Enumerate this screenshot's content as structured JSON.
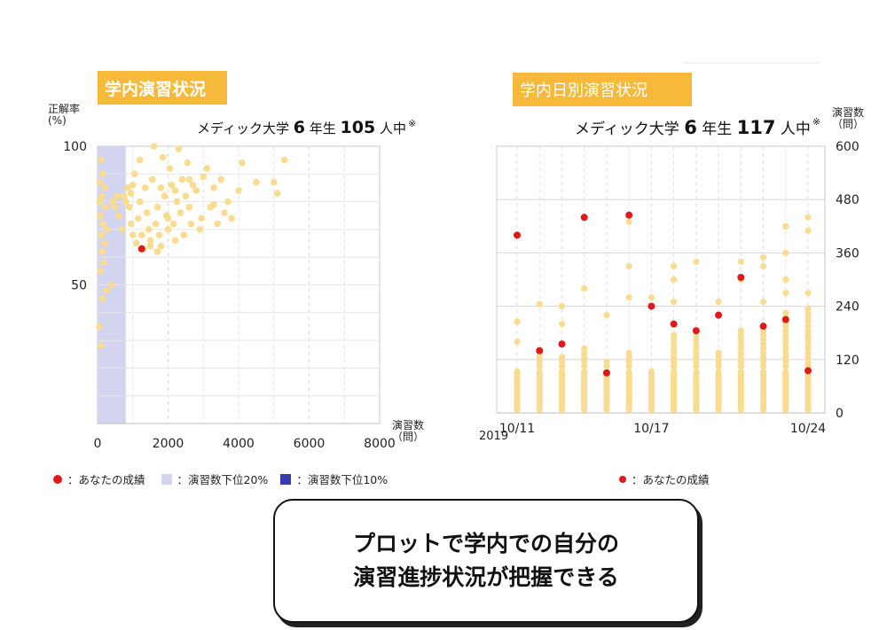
{
  "left_panel": {
    "tag": "学内演習状況",
    "header_prefix": "メディック大学",
    "header_year": "6",
    "header_year_unit": "年生",
    "header_count": "105",
    "header_count_unit": "人中",
    "header_mark": "※",
    "y_axis_title_line1": "正解率",
    "y_axis_title_line2": "(%)",
    "x_axis_title_line1": "演習数",
    "x_axis_title_line2": "（問）"
  },
  "right_panel": {
    "tag": "学内日別演習状況",
    "header_prefix": "メディック大学",
    "header_year": "6",
    "header_year_unit": "年生",
    "header_count": "117",
    "header_count_unit": "人中",
    "header_mark": "※",
    "y_axis_title_line1": "演習数",
    "y_axis_title_line2": "（問）",
    "year_label": "2019"
  },
  "legend": {
    "left": {
      "you": "：あなたの成績",
      "bottom20": "：演習数下位20%",
      "bottom10": "：演習数下位10%"
    },
    "right": {
      "you": "：あなたの成績"
    }
  },
  "callout": {
    "line1": "プロットで学内での自分の",
    "line2": "演習進捗状況が把握できる"
  },
  "colors": {
    "tag": "#f6b93a",
    "others": "#f9dc8f",
    "you": "#e01a1a",
    "band20": "#d3d4f0",
    "band10": "#3a3ab0"
  },
  "chart_data": [
    {
      "type": "scatter",
      "xlim": [
        0,
        8000
      ],
      "ylim": [
        0,
        100
      ],
      "xticks": [
        "0",
        "2000",
        "4000",
        "6000",
        "8000"
      ],
      "yticks": [
        "50",
        "100"
      ],
      "grid": true,
      "shaded_band": {
        "label": "演習数下位20%",
        "x_range": [
          0,
          800
        ]
      },
      "series": [
        {
          "name": "others",
          "points": [
            [
              100,
              95
            ],
            [
              150,
              90
            ],
            [
              60,
              87
            ],
            [
              200,
              85
            ],
            [
              120,
              82
            ],
            [
              60,
              80
            ],
            [
              220,
              78
            ],
            [
              80,
              75
            ],
            [
              150,
              72
            ],
            [
              260,
              70
            ],
            [
              100,
              68
            ],
            [
              200,
              65
            ],
            [
              140,
              62
            ],
            [
              180,
              58
            ],
            [
              80,
              55
            ],
            [
              250,
              48
            ],
            [
              150,
              45
            ],
            [
              50,
              35
            ],
            [
              100,
              28
            ],
            [
              400,
              50
            ],
            [
              430,
              80
            ],
            [
              500,
              78
            ],
            [
              550,
              82
            ],
            [
              600,
              75
            ],
            [
              700,
              70
            ],
            [
              750,
              82
            ],
            [
              800,
              80
            ],
            [
              850,
              85
            ],
            [
              900,
              78
            ],
            [
              950,
              72
            ],
            [
              1000,
              68
            ],
            [
              1100,
              65
            ],
            [
              1150,
              74
            ],
            [
              1200,
              80
            ],
            [
              1250,
              68
            ],
            [
              1300,
              63
            ],
            [
              1350,
              85
            ],
            [
              1400,
              76
            ],
            [
              1450,
              70
            ],
            [
              1500,
              66
            ],
            [
              1550,
              88
            ],
            [
              1600,
              100
            ],
            [
              1650,
              72
            ],
            [
              1700,
              78
            ],
            [
              1750,
              68
            ],
            [
              1800,
              64
            ],
            [
              1850,
              96
            ],
            [
              1900,
              82
            ],
            [
              1950,
              75
            ],
            [
              2000,
              70
            ],
            [
              2050,
              92
            ],
            [
              2100,
              86
            ],
            [
              2150,
              72
            ],
            [
              2200,
              66
            ],
            [
              2250,
              80
            ],
            [
              2300,
              99
            ],
            [
              2350,
              76
            ],
            [
              2400,
              88
            ],
            [
              2450,
              68
            ],
            [
              2500,
              82
            ],
            [
              2550,
              94
            ],
            [
              2600,
              78
            ],
            [
              2650,
              72
            ],
            [
              2700,
              86
            ],
            [
              2800,
              84
            ],
            [
              2900,
              70
            ],
            [
              3000,
              89
            ],
            [
              3100,
              92
            ],
            [
              3200,
              78
            ],
            [
              3300,
              85
            ],
            [
              3400,
              72
            ],
            [
              3500,
              88
            ],
            [
              3600,
              76
            ],
            [
              3700,
              80
            ],
            [
              3800,
              74
            ],
            [
              4000,
              84
            ],
            [
              4100,
              94
            ],
            [
              4500,
              87
            ],
            [
              5000,
              87
            ],
            [
              5100,
              83
            ],
            [
              5300,
              95
            ],
            [
              1200,
              95
            ],
            [
              1050,
              90
            ],
            [
              950,
              83
            ],
            [
              1500,
              64
            ],
            [
              1700,
              62
            ],
            [
              2000,
              74
            ],
            [
              2200,
              84
            ],
            [
              1800,
              85
            ],
            [
              2600,
              88
            ],
            [
              1000,
              86
            ],
            [
              3300,
              79
            ],
            [
              2950,
              74
            ]
          ]
        },
        {
          "name": "あなたの成績",
          "points": [
            [
              1250,
              63
            ]
          ]
        }
      ]
    },
    {
      "type": "scatter",
      "ylim": [
        0,
        600
      ],
      "yticks": [
        "0",
        "120",
        "240",
        "360",
        "480",
        "600"
      ],
      "xticks": [
        "10/11",
        "10/17",
        "10/24"
      ],
      "x": [
        "10/11",
        "10/12",
        "10/13",
        "10/14",
        "10/15",
        "10/16",
        "10/17",
        "10/18",
        "10/19",
        "10/20",
        "10/21",
        "10/22",
        "10/23",
        "10/24"
      ],
      "grid": true,
      "series": [
        {
          "name": "others",
          "ranges": [
            [
              0,
              100
            ],
            [
              0,
              250
            ],
            [
              0,
              240
            ],
            [
              0,
              280
            ],
            [
              0,
              220
            ],
            [
              0,
              260
            ],
            [
              0,
              110
            ],
            [
              0,
              330
            ],
            [
              0,
              340
            ],
            [
              0,
              250
            ],
            [
              0,
              340
            ],
            [
              0,
              350
            ],
            [
              0,
              420
            ],
            [
              0,
              445
            ]
          ],
          "tops": [
            [
              205,
              160
            ],
            [
              245
            ],
            [
              240,
              200
            ],
            [
              280,
              120
            ],
            [
              220
            ],
            [
              430,
              330,
              260
            ],
            [
              260
            ],
            [
              330,
              300,
              250
            ],
            [
              340
            ],
            [
              250,
              220
            ],
            [
              340,
              300
            ],
            [
              350,
              330,
              250
            ],
            [
              420,
              360,
              300,
              270
            ],
            [
              440,
              410,
              270
            ]
          ]
        },
        {
          "name": "あなたの成績",
          "values": [
            400,
            140,
            155,
            440,
            90,
            445,
            240,
            200,
            185,
            220,
            305,
            195,
            210,
            95
          ]
        }
      ]
    }
  ]
}
